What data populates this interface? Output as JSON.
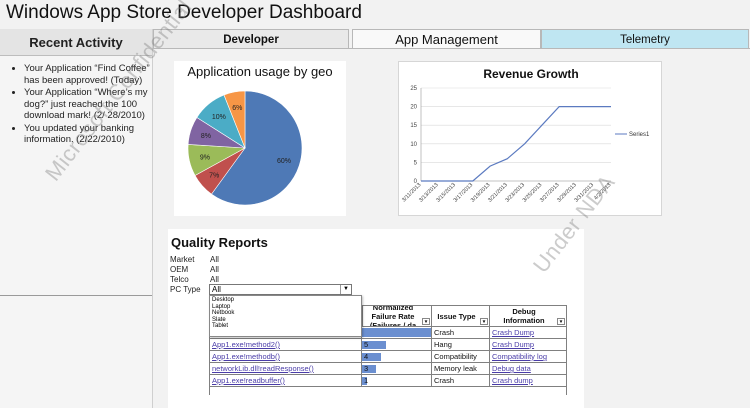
{
  "app": {
    "title": "Windows App Store Developer Dashboard"
  },
  "sidebar": {
    "heading": "Recent Activity",
    "items": [
      "Your Application “Find Coffee” has been approved! (Today)",
      "Your Application “Where’s my dog?” just reached the 100 download mark! (2/ 28/2010)",
      "You updated your banking information. (2/22/2010)"
    ]
  },
  "tabs": [
    {
      "label": "Developer"
    },
    {
      "label": "App Management"
    },
    {
      "label": "Telemetry"
    }
  ],
  "colors": {
    "active_tab": "#bfe6f2",
    "line": "#5b7ac0",
    "bar": "#6b8fd0"
  },
  "geo_chart": {
    "chart_data": {
      "type": "pie",
      "title": "Application usage by geo",
      "slices": [
        {
          "value": 60,
          "label": "60%",
          "color": "#4e79b6"
        },
        {
          "value": 7,
          "label": "7%",
          "color": "#c0504d"
        },
        {
          "value": 9,
          "label": "9%",
          "color": "#9bbb59"
        },
        {
          "value": 8,
          "label": "8%",
          "color": "#8064a2"
        },
        {
          "value": 10,
          "label": "10%",
          "color": "#4bacc6"
        },
        {
          "value": 6,
          "label": "6%",
          "color": "#f79646"
        }
      ]
    }
  },
  "revenue_chart": {
    "chart_data": {
      "type": "line",
      "title": "Revenue Growth",
      "x": [
        "3/11/2013",
        "3/13/2013",
        "3/15/2013",
        "3/17/2013",
        "3/19/2013",
        "3/21/2013",
        "3/23/2013",
        "3/25/2013",
        "3/27/2013",
        "3/29/2013",
        "3/31/2013",
        "4/2/2013"
      ],
      "series": [
        {
          "name": "Series1",
          "values": [
            0,
            0,
            0,
            0,
            4,
            6,
            10,
            15,
            20,
            20,
            20,
            20
          ]
        }
      ],
      "ylim": [
        0,
        25
      ],
      "yticks": [
        0,
        5,
        10,
        15,
        20,
        25
      ],
      "grid": true,
      "legend": "right"
    }
  },
  "quality": {
    "title": "Quality Reports",
    "filters": [
      {
        "label": "Market",
        "value": "All"
      },
      {
        "label": "OEM",
        "value": "All"
      },
      {
        "label": "Telco",
        "value": "All"
      },
      {
        "label": "PC Type",
        "value": "All"
      }
    ],
    "pc_type_options": [
      "Desktop",
      "Laptop",
      "Netbook",
      "Slate",
      "Tablet"
    ],
    "columns": [
      "Normalized Failure Rate (Failures / da",
      "Issue Type",
      "Debug Information"
    ],
    "rows": [
      {
        "method": "",
        "rate": "",
        "issue": "Crash",
        "debug": "Crash Dump"
      },
      {
        "method": "App1.exe!method2()",
        "rate": 5,
        "issue": "Hang",
        "debug": "Crash Dump"
      },
      {
        "method": "App1.exe!methodb()",
        "rate": 4,
        "issue": "Compatibility",
        "debug": "Compatibility log"
      },
      {
        "method": "networkLib.dll!readResponse()",
        "rate": 3,
        "issue": "Memory leak",
        "debug": "Debug data"
      },
      {
        "method": "App1.exe!readbuffer()",
        "rate": 1,
        "issue": "Crash",
        "debug": "Crash dump"
      }
    ]
  },
  "watermark": {
    "left": "Microsoft Confidential - Released to",
    "right": "Under NDA"
  }
}
